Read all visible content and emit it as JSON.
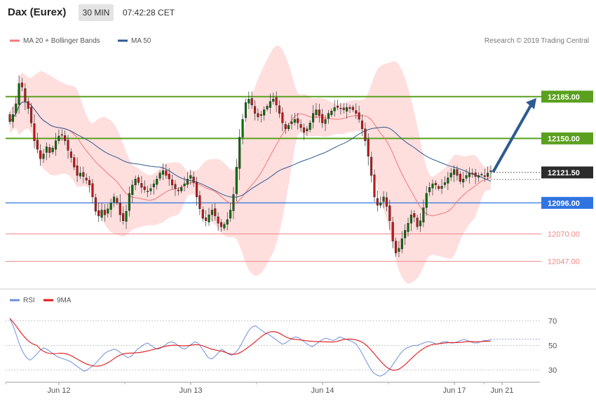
{
  "header": {
    "symbol": "Dax (Eurex)",
    "timeframe": "30 MIN",
    "time": "07:42:28 CET"
  },
  "legend": {
    "bands_label": "MA 20 + Bollinger Bands",
    "ma50_label": "MA 50",
    "rsi_label": "RSI",
    "ma9_label": "9MA"
  },
  "source": "Research © 2019 Trading Central",
  "colors": {
    "up": "#0d6e0d",
    "down": "#c01818",
    "band_fill": "#ffdede",
    "ma20": "#f07878",
    "ma50": "#2e5a90",
    "resistance": "#5aa01e",
    "support_main": "#2f74e0",
    "support_light": "#ee8888",
    "rsi": "#6f8fdc",
    "rsi_ma": "#e01818",
    "arrow": "#2e5a90"
  },
  "chart_data": {
    "type": "candlestick",
    "ylim": [
      12028,
      12226
    ],
    "x_ticks": [
      "Jun 12",
      "Jun 13",
      "Jun 14",
      "Jun 17",
      "Jun 21"
    ],
    "levels": [
      {
        "label": "12185.00",
        "value": 12185,
        "kind": "resistance"
      },
      {
        "label": "12150.00",
        "value": 12150,
        "kind": "resistance"
      },
      {
        "label": "12121.50",
        "value": 12121.5,
        "kind": "current"
      },
      {
        "label": "12096.00",
        "value": 12096,
        "kind": "support_main"
      },
      {
        "label": "12070.00",
        "value": 12070,
        "kind": "support_light"
      },
      {
        "label": "12047.00",
        "value": 12047,
        "kind": "support_light"
      }
    ],
    "prices": [
      12164,
      12170,
      12179,
      12196,
      12193,
      12181,
      12175,
      12163,
      12148,
      12141,
      12133,
      12137,
      12143,
      12138,
      12142,
      12148,
      12152,
      12153,
      12148,
      12140,
      12134,
      12126,
      12119,
      12121,
      12118,
      12115,
      12111,
      12101,
      12089,
      12085,
      12090,
      12086,
      12091,
      12096,
      12101,
      12096,
      12086,
      12081,
      12089,
      12104,
      12111,
      12116,
      12113,
      12109,
      12107,
      12106,
      12108,
      12112,
      12116,
      12121,
      12123,
      12119,
      12116,
      12111,
      12108,
      12106,
      12109,
      12112,
      12116,
      12119,
      12113,
      12101,
      12091,
      12083,
      12081,
      12086,
      12090,
      12085,
      12079,
      12076,
      12078,
      12082,
      12090,
      12103,
      12126,
      12151,
      12166,
      12180,
      12183,
      12178,
      12171,
      12168,
      12170,
      12174,
      12177,
      12181,
      12183,
      12178,
      12171,
      12163,
      12158,
      12161,
      12164,
      12166,
      12163,
      12159,
      12155,
      12158,
      12163,
      12171,
      12174,
      12169,
      12163,
      12166,
      12171,
      12173,
      12176,
      12176,
      12175,
      12174,
      12176,
      12175,
      12174,
      12171,
      12166,
      12158,
      12148,
      12135,
      12119,
      12101,
      12094,
      12096,
      12101,
      12093,
      12081,
      12064,
      12054,
      12058,
      12066,
      12073,
      12079,
      12086,
      12084,
      12076,
      12081,
      12092,
      12104,
      12109,
      12112,
      12111,
      12108,
      12110,
      12113,
      12117,
      12121,
      12124,
      12119,
      12114,
      12116,
      12119,
      12121,
      12120,
      12118,
      12119,
      12120,
      12118,
      12121,
      12123
    ],
    "rsi_ticks": [
      70,
      50,
      30
    ],
    "rsi_ylim": [
      20,
      80
    ],
    "rsi": [
      72,
      66,
      58,
      50,
      44,
      40,
      38,
      40,
      43,
      46,
      48,
      47,
      45,
      43,
      41,
      40,
      39,
      38,
      37,
      35,
      33,
      31,
      29,
      30,
      32,
      34,
      37,
      40,
      43,
      45,
      46,
      47,
      46,
      44,
      42,
      40,
      41,
      44,
      47,
      49,
      51,
      52,
      50,
      48,
      47,
      48,
      50,
      52,
      53,
      52,
      50,
      48,
      47,
      49,
      51,
      53,
      52,
      48,
      44,
      40,
      39,
      41,
      44,
      47,
      45,
      43,
      42,
      44,
      47,
      52,
      57,
      62,
      65,
      66,
      64,
      62,
      60,
      59,
      57,
      55,
      53,
      51,
      52,
      54,
      56,
      57,
      56,
      54,
      52,
      50,
      49,
      51,
      53,
      55,
      56,
      55,
      54,
      55,
      57,
      56,
      55,
      54,
      53,
      51,
      47,
      42,
      37,
      32,
      28,
      26,
      25,
      26,
      28,
      31,
      35,
      39,
      43,
      46,
      48,
      49,
      50,
      50,
      51,
      52,
      53,
      53,
      52,
      51,
      52,
      53,
      53,
      52,
      52,
      53,
      54,
      55,
      54,
      53,
      52,
      52,
      53,
      54,
      54,
      55
    ]
  }
}
